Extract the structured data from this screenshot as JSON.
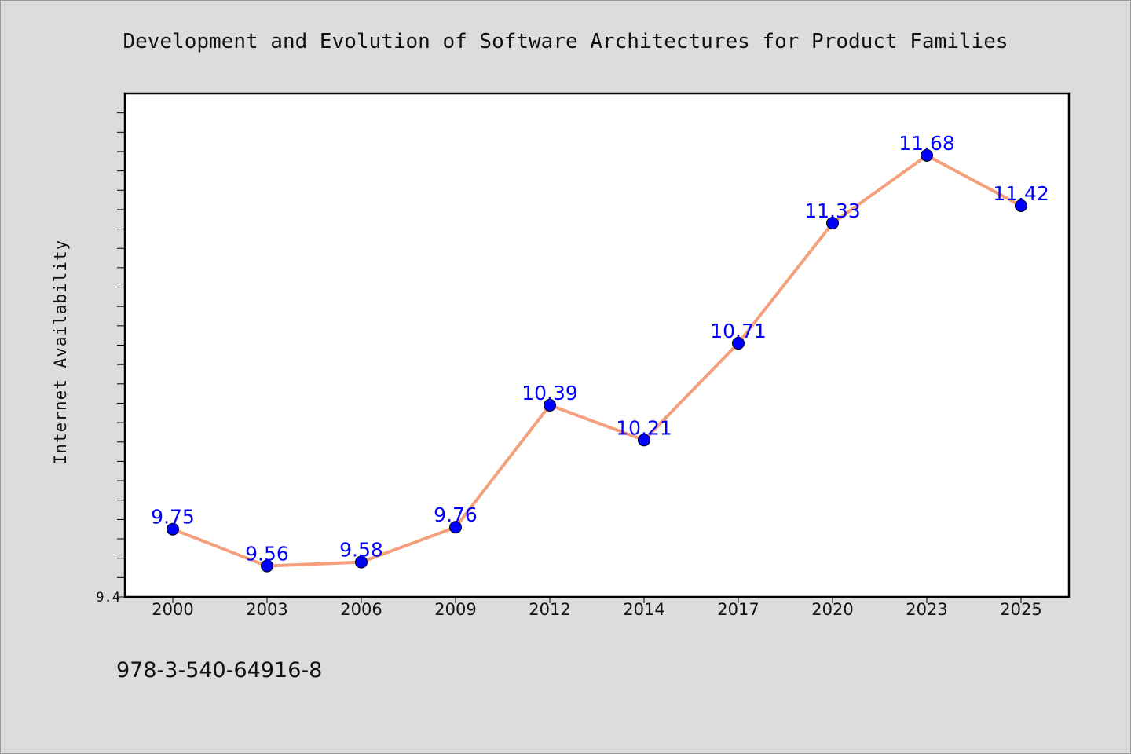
{
  "chart_data": {
    "type": "line",
    "title": "Development and Evolution of Software Architectures for Product Families",
    "xlabel": "",
    "ylabel": "Internet Availability",
    "categories": [
      "2000",
      "2003",
      "2006",
      "2009",
      "2012",
      "2014",
      "2017",
      "2020",
      "2023",
      "2025"
    ],
    "series": [
      {
        "values": [
          9.75,
          9.56,
          9.58,
          9.76,
          10.39,
          10.21,
          10.71,
          11.33,
          11.68,
          11.42
        ],
        "line_color": "#f4a07c",
        "marker_color": "#0000ff"
      }
    ],
    "data_labels": [
      "9.75",
      "9.56",
      "9.58",
      "9.76",
      "10.39",
      "10.21",
      "10.71",
      "11.33",
      "11.68",
      "11.42"
    ],
    "ylim": [
      9.4,
      12.0
    ],
    "yticks_labeled": [
      "9.4"
    ],
    "grid": false,
    "legend": "none"
  },
  "footnote": "978-3-540-64916-8"
}
